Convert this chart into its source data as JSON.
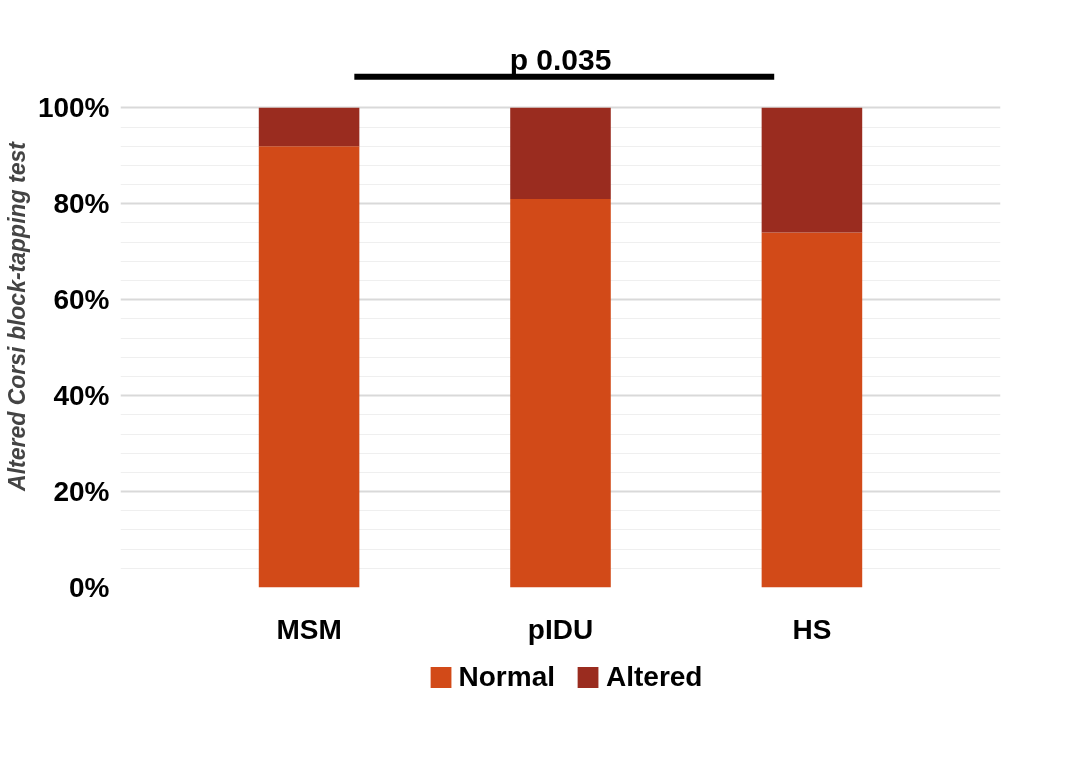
{
  "chart_data": {
    "type": "bar",
    "stacked": true,
    "categories": [
      "MSM",
      "pIDU",
      "HS"
    ],
    "series": [
      {
        "name": "Normal",
        "color": "#d24a18",
        "values": [
          92,
          81,
          74
        ]
      },
      {
        "name": "Altered",
        "color": "#9a2c1f",
        "values": [
          8,
          19,
          26
        ]
      }
    ],
    "ylabel": "Altered Corsi block-tapping test",
    "ylim": [
      0,
      100
    ],
    "yticks": [
      {
        "value": 0,
        "label": "0%"
      },
      {
        "value": 20,
        "label": "20%"
      },
      {
        "value": 40,
        "label": "40%"
      },
      {
        "value": 60,
        "label": "60%"
      },
      {
        "value": 80,
        "label": "80%"
      },
      {
        "value": 100,
        "label": "100%"
      }
    ],
    "annotations": [
      "p 0.035"
    ],
    "grid": "y",
    "legend": "bottom"
  }
}
